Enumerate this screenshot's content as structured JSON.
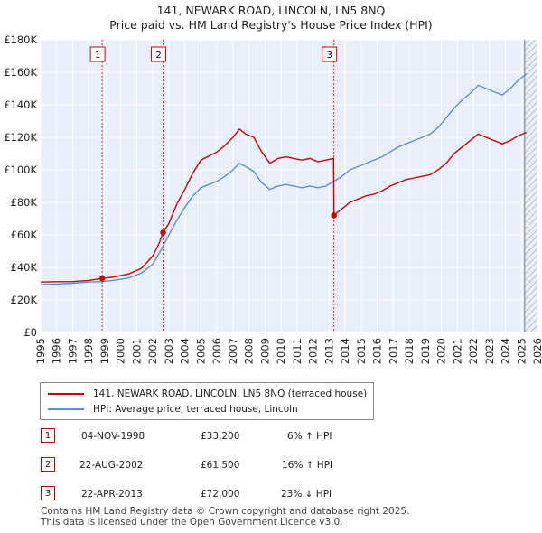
{
  "chart_data": {
    "type": "line",
    "title": "141, NEWARK ROAD, LINCOLN, LN5 8NQ",
    "subtitle": "Price paid vs. HM Land Registry's House Price Index (HPI)",
    "x_range": [
      1995,
      2026
    ],
    "ylim": [
      0,
      180000
    ],
    "y_ticks": [
      0,
      20000,
      40000,
      60000,
      80000,
      100000,
      120000,
      140000,
      160000,
      180000
    ],
    "y_tick_labels": [
      "£0",
      "£20K",
      "£40K",
      "£60K",
      "£80K",
      "£100K",
      "£120K",
      "£140K",
      "£160K",
      "£180K"
    ],
    "x_ticks": [
      1995,
      1996,
      1997,
      1998,
      1999,
      2000,
      2001,
      2002,
      2003,
      2004,
      2005,
      2006,
      2007,
      2008,
      2009,
      2010,
      2011,
      2012,
      2013,
      2014,
      2015,
      2016,
      2017,
      2018,
      2019,
      2020,
      2021,
      2022,
      2023,
      2024,
      2025,
      2026
    ],
    "series": [
      {
        "name": "141, NEWARK ROAD, LINCOLN, LN5 8NQ (terraced house)",
        "color": "#cc0000",
        "points": [
          [
            1995.0,
            31000
          ],
          [
            1996.0,
            31200
          ],
          [
            1997.0,
            31300
          ],
          [
            1998.0,
            32000
          ],
          [
            1998.84,
            33200
          ],
          [
            1999.5,
            34000
          ],
          [
            2000.5,
            36000
          ],
          [
            2001.3,
            39500
          ],
          [
            2002.0,
            47000
          ],
          [
            2002.4,
            55000
          ],
          [
            2002.64,
            61500
          ],
          [
            2003.0,
            67000
          ],
          [
            2003.5,
            79000
          ],
          [
            2004.0,
            88000
          ],
          [
            2004.5,
            98000
          ],
          [
            2005.0,
            106000
          ],
          [
            2005.5,
            108500
          ],
          [
            2006.0,
            111000
          ],
          [
            2006.5,
            115000
          ],
          [
            2007.0,
            120000
          ],
          [
            2007.4,
            125000
          ],
          [
            2007.8,
            122000
          ],
          [
            2008.3,
            120000
          ],
          [
            2008.8,
            111000
          ],
          [
            2009.3,
            104000
          ],
          [
            2009.8,
            107000
          ],
          [
            2010.3,
            108000
          ],
          [
            2010.8,
            107000
          ],
          [
            2011.3,
            106000
          ],
          [
            2011.8,
            107000
          ],
          [
            2012.3,
            105000
          ],
          [
            2012.8,
            106000
          ],
          [
            2013.28,
            107000
          ],
          [
            2013.3,
            72000
          ],
          [
            2013.8,
            76000
          ],
          [
            2014.3,
            80000
          ],
          [
            2014.8,
            82000
          ],
          [
            2015.3,
            84000
          ],
          [
            2015.8,
            85000
          ],
          [
            2016.3,
            87000
          ],
          [
            2016.8,
            90000
          ],
          [
            2017.3,
            92000
          ],
          [
            2017.8,
            94000
          ],
          [
            2018.3,
            95000
          ],
          [
            2018.8,
            96000
          ],
          [
            2019.3,
            97000
          ],
          [
            2019.8,
            100000
          ],
          [
            2020.3,
            104000
          ],
          [
            2020.8,
            110000
          ],
          [
            2021.3,
            114000
          ],
          [
            2021.8,
            118000
          ],
          [
            2022.3,
            122000
          ],
          [
            2022.8,
            120000
          ],
          [
            2023.3,
            118000
          ],
          [
            2023.8,
            116000
          ],
          [
            2024.3,
            118000
          ],
          [
            2024.8,
            121000
          ],
          [
            2025.3,
            123000
          ]
        ],
        "sales": [
          [
            1998.84,
            33200
          ],
          [
            2002.64,
            61500
          ],
          [
            2013.3,
            72000
          ]
        ]
      },
      {
        "name": "HPI: Average price, terraced house, Lincoln",
        "color": "#5b8fd4",
        "points": [
          [
            1995.0,
            29500
          ],
          [
            1996.0,
            29800
          ],
          [
            1997.0,
            30300
          ],
          [
            1998.0,
            31000
          ],
          [
            1998.84,
            31300
          ],
          [
            1999.5,
            32000
          ],
          [
            2000.5,
            33500
          ],
          [
            2001.3,
            36500
          ],
          [
            2002.0,
            42000
          ],
          [
            2002.64,
            53000
          ],
          [
            2003.0,
            60000
          ],
          [
            2003.5,
            69000
          ],
          [
            2004.0,
            77000
          ],
          [
            2004.5,
            84000
          ],
          [
            2005.0,
            89000
          ],
          [
            2005.5,
            91000
          ],
          [
            2006.0,
            93000
          ],
          [
            2006.5,
            96000
          ],
          [
            2007.0,
            100000
          ],
          [
            2007.4,
            104000
          ],
          [
            2007.8,
            102000
          ],
          [
            2008.3,
            99000
          ],
          [
            2008.8,
            92000
          ],
          [
            2009.3,
            88000
          ],
          [
            2009.8,
            90000
          ],
          [
            2010.3,
            91000
          ],
          [
            2010.8,
            90000
          ],
          [
            2011.3,
            89000
          ],
          [
            2011.8,
            90000
          ],
          [
            2012.3,
            89000
          ],
          [
            2012.8,
            90000
          ],
          [
            2013.3,
            93000
          ],
          [
            2013.8,
            96000
          ],
          [
            2014.3,
            100000
          ],
          [
            2014.8,
            102000
          ],
          [
            2015.3,
            104000
          ],
          [
            2015.8,
            106000
          ],
          [
            2016.3,
            108000
          ],
          [
            2016.8,
            111000
          ],
          [
            2017.3,
            114000
          ],
          [
            2017.8,
            116000
          ],
          [
            2018.3,
            118000
          ],
          [
            2018.8,
            120000
          ],
          [
            2019.3,
            122000
          ],
          [
            2019.8,
            126000
          ],
          [
            2020.3,
            132000
          ],
          [
            2020.8,
            138000
          ],
          [
            2021.3,
            143000
          ],
          [
            2021.8,
            147000
          ],
          [
            2022.3,
            152000
          ],
          [
            2022.8,
            150000
          ],
          [
            2023.3,
            148000
          ],
          [
            2023.8,
            146000
          ],
          [
            2024.3,
            150000
          ],
          [
            2024.8,
            155000
          ],
          [
            2025.3,
            159000
          ]
        ]
      }
    ],
    "annotations": [
      {
        "label": "1",
        "x": 1998.84
      },
      {
        "label": "2",
        "x": 2002.64
      },
      {
        "label": "3",
        "x": 2013.3
      }
    ],
    "shaded_after": 2025.2
  },
  "legend": {
    "red_label": "141, NEWARK ROAD, LINCOLN, LN5 8NQ (terraced house)",
    "blue_label": "HPI: Average price, terraced house, Lincoln"
  },
  "transactions": [
    {
      "num": "1",
      "date": "04-NOV-1998",
      "price": "£33,200",
      "hpi": "6% ↑ HPI"
    },
    {
      "num": "2",
      "date": "22-AUG-2002",
      "price": "£61,500",
      "hpi": "16% ↑ HPI"
    },
    {
      "num": "3",
      "date": "22-APR-2013",
      "price": "£72,000",
      "hpi": "23% ↓ HPI"
    }
  ],
  "footer": {
    "line1": "Contains HM Land Registry data © Crown copyright and database right 2025.",
    "line2": "This data is licensed under the Open Government Licence v3.0."
  },
  "colors": {
    "red": "#cc0000",
    "blue": "#5b8fd4",
    "plot_bg": "#e8eefa",
    "grid": "#ffffff"
  }
}
